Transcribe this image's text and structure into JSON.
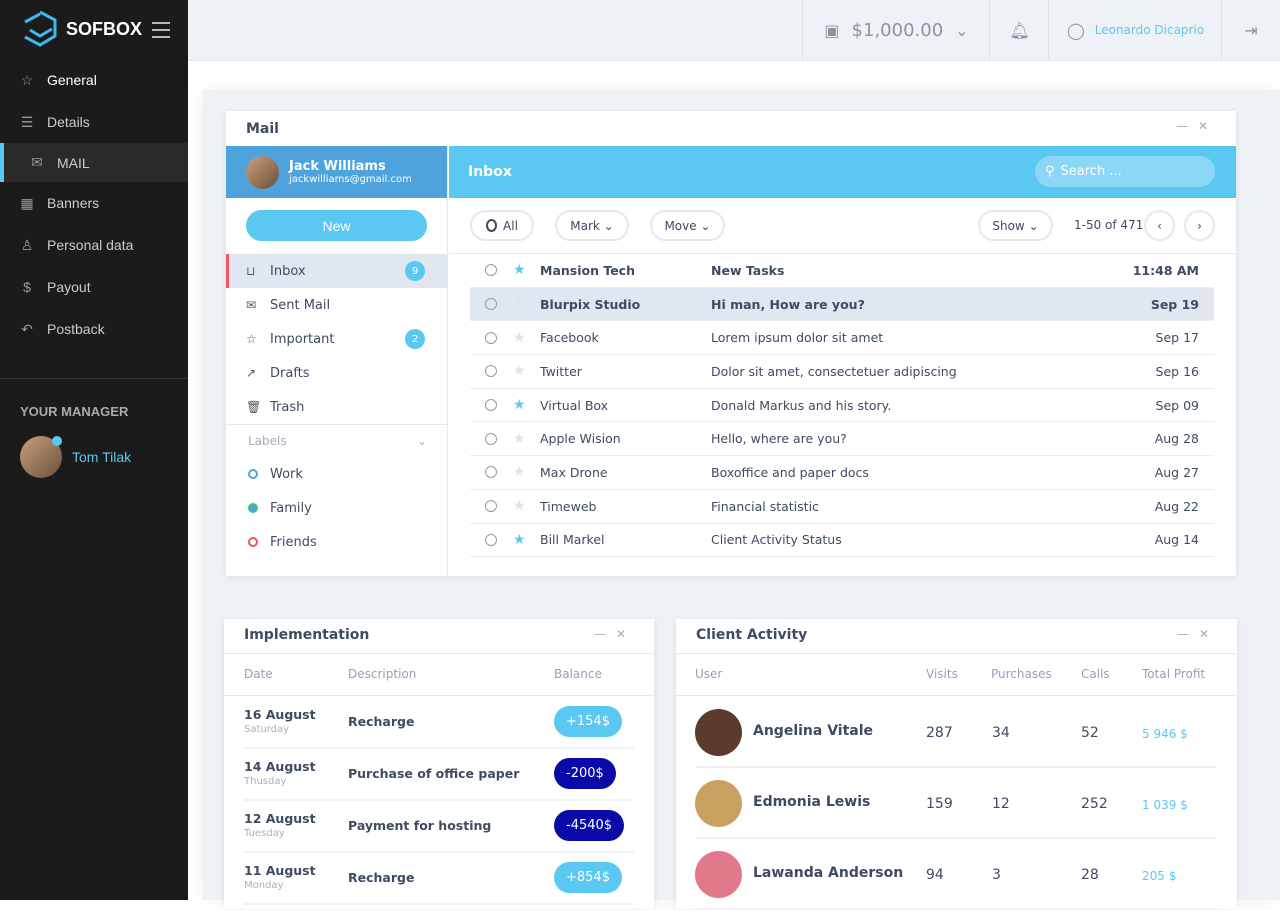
{
  "brand": {
    "name": "SOFBOX"
  },
  "sidebar": {
    "items": [
      {
        "label": "General",
        "icon": "star-icon"
      },
      {
        "label": "Details",
        "icon": "list-icon"
      },
      {
        "label": "MAIL",
        "icon": "mail-icon"
      },
      {
        "label": "Banners",
        "icon": "grid-icon"
      },
      {
        "label": "Personal data",
        "icon": "user-icon"
      },
      {
        "label": "Payout",
        "icon": "dollar-icon"
      },
      {
        "label": "Postback",
        "icon": "undo-icon"
      }
    ],
    "manager_title": "YOUR MANAGER",
    "manager_name": "Tom Tilak"
  },
  "topbar": {
    "balance": "$1,000.00",
    "user": "Leonardo Dicaprio"
  },
  "mail": {
    "title": "Mail",
    "profile_name": "Jack Williams",
    "profile_email": "jackwilliams@gmail.com",
    "new_label": "New",
    "folders": [
      {
        "label": "Inbox",
        "count": "9"
      },
      {
        "label": "Sent Mail"
      },
      {
        "label": "Important",
        "count": "2"
      },
      {
        "label": "Drafts"
      },
      {
        "label": "Trash"
      }
    ],
    "labels_title": "Labels",
    "labels": [
      {
        "label": "Work",
        "color": "#4fa3dd"
      },
      {
        "label": "Family",
        "color": "#3cc47c"
      },
      {
        "label": "Friends",
        "color": "#f0555f"
      }
    ],
    "inbox_title": "Inbox",
    "search_placeholder": "Search ...",
    "toolbar": {
      "all": "All",
      "mark": "Mark",
      "move": "Move",
      "show": "Show",
      "range": "1-50 of 471"
    },
    "messages": [
      {
        "from": "Mansion Tech",
        "subject": "New Tasks",
        "date": "11:48 AM",
        "starred": true,
        "unread": true
      },
      {
        "from": "Blurpix Studio",
        "subject": "Hi man, How are you?",
        "date": "Sep 19",
        "starred": false,
        "unread": true
      },
      {
        "from": "Facebook",
        "subject": "Lorem ipsum dolor sit amet",
        "date": "Sep 17",
        "starred": false
      },
      {
        "from": "Twitter",
        "subject": "Dolor sit amet, consectetuer adipiscing",
        "date": "Sep 16",
        "starred": false
      },
      {
        "from": "Virtual Box",
        "subject": "Donald Markus and his story.",
        "date": "Sep 09",
        "starred": true
      },
      {
        "from": "Apple Wision",
        "subject": "Hello, where are you?",
        "date": "Aug 28",
        "starred": false
      },
      {
        "from": "Max Drone",
        "subject": "Boxoffice and paper docs",
        "date": "Aug 27",
        "starred": false
      },
      {
        "from": "Timeweb",
        "subject": "Financial statistic",
        "date": "Aug 22",
        "starred": false
      },
      {
        "from": "Bill Markel",
        "subject": "Client Activity Status",
        "date": "Aug 14",
        "starred": true
      }
    ]
  },
  "implementation": {
    "title": "Implementation",
    "headers": [
      "Date",
      "Description",
      "Balance"
    ],
    "rows": [
      {
        "date": "16 August",
        "day": "Saturday",
        "desc": "Recharge",
        "balance": "+154$",
        "positive": true
      },
      {
        "date": "14 August",
        "day": "Thusday",
        "desc": "Purchase of office paper",
        "balance": "-200$",
        "positive": false
      },
      {
        "date": "12 August",
        "day": "Tuesday",
        "desc": "Payment for hosting",
        "balance": "-4540$",
        "positive": false
      },
      {
        "date": "11 August",
        "day": "Monday",
        "desc": "Recharge",
        "balance": "+854$",
        "positive": true
      }
    ]
  },
  "client_activity": {
    "title": "Client Activity",
    "headers": [
      "User",
      "Visits",
      "Purchases",
      "Calls",
      "Total Profit"
    ],
    "rows": [
      {
        "user": "Angelina Vitale",
        "visits": "287",
        "purchases": "34",
        "calls": "52",
        "profit": "5 946 $"
      },
      {
        "user": "Edmonia Lewis",
        "visits": "159",
        "purchases": "12",
        "calls": "252",
        "profit": "1 039 $"
      },
      {
        "user": "Lawanda Anderson",
        "visits": "94",
        "purchases": "3",
        "calls": "28",
        "profit": "205 $"
      }
    ]
  },
  "colors": {
    "accent": "#5bc8f2",
    "profile": "#4fa3dd",
    "negative": "#0a0aa8",
    "sidebar": "#1b1b1b"
  }
}
